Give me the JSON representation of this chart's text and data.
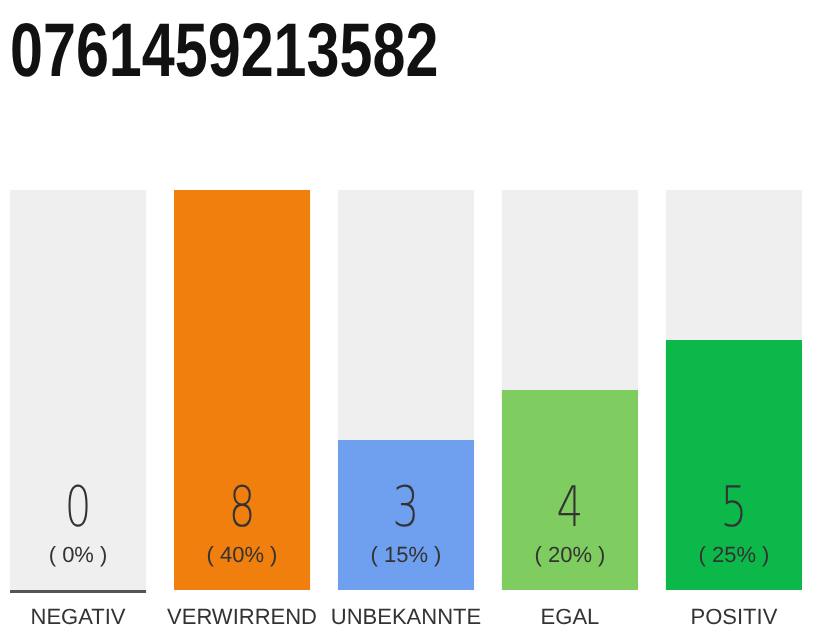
{
  "chart_data": {
    "type": "bar",
    "title": "0761459213582",
    "categories": [
      "NEGATIV",
      "VERWIRREND",
      "UNBEKANNTE",
      "EGAL",
      "POSITIV"
    ],
    "values": [
      0,
      8,
      3,
      4,
      5
    ],
    "colors": [
      "#555555",
      "#f07f0e",
      "#6ea0ef",
      "#7fcc60",
      "#0db84a"
    ],
    "data_labels": true,
    "annotations": [
      "( 0% )",
      "( 40% )",
      "( 15% )",
      "( 20% )",
      "( 25% )"
    ]
  }
}
